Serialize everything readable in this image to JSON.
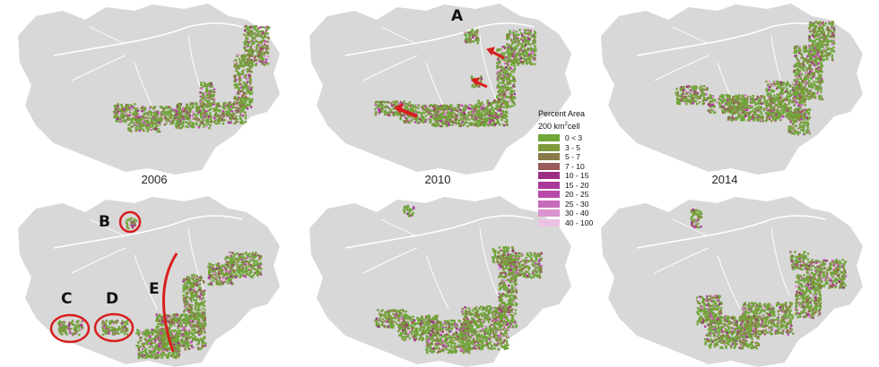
{
  "maps": [
    {
      "year": "2006",
      "extent": "forest-west"
    },
    {
      "year": "2010",
      "extent": "forest-west"
    },
    {
      "year": "2014",
      "extent": "forest-west"
    },
    {
      "year": "",
      "extent": "forest-east"
    },
    {
      "year": "",
      "extent": "forest-east"
    },
    {
      "year": "",
      "extent": "forest-east"
    }
  ],
  "annotations": {
    "A": "A",
    "B": "B",
    "C": "C",
    "D": "D",
    "E": "E"
  },
  "legend": {
    "title": "Percent Area",
    "subtitle_prefix": "200 km",
    "subtitle_sup": "2",
    "subtitle_suffix": "cell",
    "items": [
      {
        "label": "0 < 3",
        "color": "#6fa63a"
      },
      {
        "label": "3 - 5",
        "color": "#7e9a3c"
      },
      {
        "label": "5 - 7",
        "color": "#8a7a4a"
      },
      {
        "label": "7 - 10",
        "color": "#9a5a5a"
      },
      {
        "label": "10 - 15",
        "color": "#9c2d83"
      },
      {
        "label": "15 - 20",
        "color": "#a8399a"
      },
      {
        "label": "20 - 25",
        "color": "#b74aa8"
      },
      {
        "label": "25 - 30",
        "color": "#c86bbb"
      },
      {
        "label": "30 - 40",
        "color": "#d993cf"
      },
      {
        "label": "40 - 100",
        "color": "#ebc2e4"
      }
    ]
  },
  "colors": {
    "land": "#d8d8d8",
    "river": "#ffffff",
    "annotation": "#d81e1e"
  }
}
